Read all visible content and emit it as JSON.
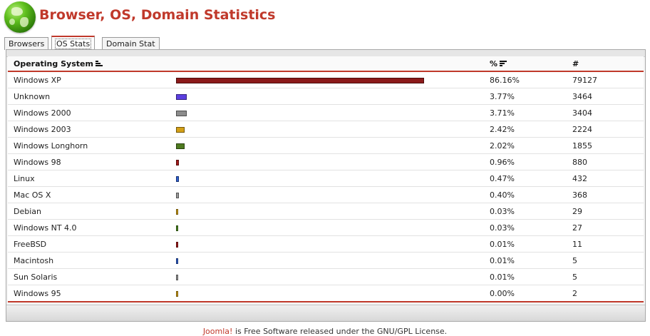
{
  "page": {
    "title": "Browser, OS, Domain Statistics"
  },
  "tabs": [
    {
      "label": "Browsers",
      "active": false
    },
    {
      "label": "OS Stats",
      "active": true
    },
    {
      "label": "Domain Stat",
      "active": false
    }
  ],
  "table": {
    "headers": {
      "name": "Operating System",
      "percent": "%",
      "count": "#"
    },
    "rows": [
      {
        "name": "Windows XP",
        "percent": "86.16%",
        "count": "79127",
        "share": 0.8616,
        "color": "#8b1a1a"
      },
      {
        "name": "Unknown",
        "percent": "3.77%",
        "count": "3464",
        "share": 0.0377,
        "color": "#5b3fe0"
      },
      {
        "name": "Windows 2000",
        "percent": "3.71%",
        "count": "3404",
        "share": 0.0371,
        "color": "#8c8c8c"
      },
      {
        "name": "Windows 2003",
        "percent": "2.42%",
        "count": "2224",
        "share": 0.0242,
        "color": "#d4a017"
      },
      {
        "name": "Windows Longhorn",
        "percent": "2.02%",
        "count": "1855",
        "share": 0.0202,
        "color": "#4e7a1f"
      },
      {
        "name": "Windows 98",
        "percent": "0.96%",
        "count": "880",
        "share": 0.0096,
        "color": "#a51b1b"
      },
      {
        "name": "Linux",
        "percent": "0.47%",
        "count": "432",
        "share": 0.0047,
        "color": "#2f5fd0"
      },
      {
        "name": "Mac OS X",
        "percent": "0.40%",
        "count": "368",
        "share": 0.004,
        "color": "#9a9a9a"
      },
      {
        "name": "Debian",
        "percent": "0.03%",
        "count": "29",
        "share": 0.0003,
        "color": "#d4a017"
      },
      {
        "name": "Windows NT 4.0",
        "percent": "0.03%",
        "count": "27",
        "share": 0.0003,
        "color": "#4e8a1f"
      },
      {
        "name": "FreeBSD",
        "percent": "0.01%",
        "count": "11",
        "share": 0.0001,
        "color": "#a51b1b"
      },
      {
        "name": "Macintosh",
        "percent": "0.01%",
        "count": "5",
        "share": 0.0001,
        "color": "#2f5fd0"
      },
      {
        "name": "Sun Solaris",
        "percent": "0.01%",
        "count": "5",
        "share": 0.0001,
        "color": "#9a9a9a"
      },
      {
        "name": "Windows 95",
        "percent": "0.00%",
        "count": "2",
        "share": 0.0,
        "color": "#d4a017"
      }
    ]
  },
  "footer": {
    "link_text": "Joomla!",
    "text": " is Free Software released under the GNU/GPL License."
  },
  "icons": {
    "logo": "green-globe-icon",
    "sort": "sort-descending-icon"
  },
  "colors": {
    "accent": "#c0392b"
  }
}
